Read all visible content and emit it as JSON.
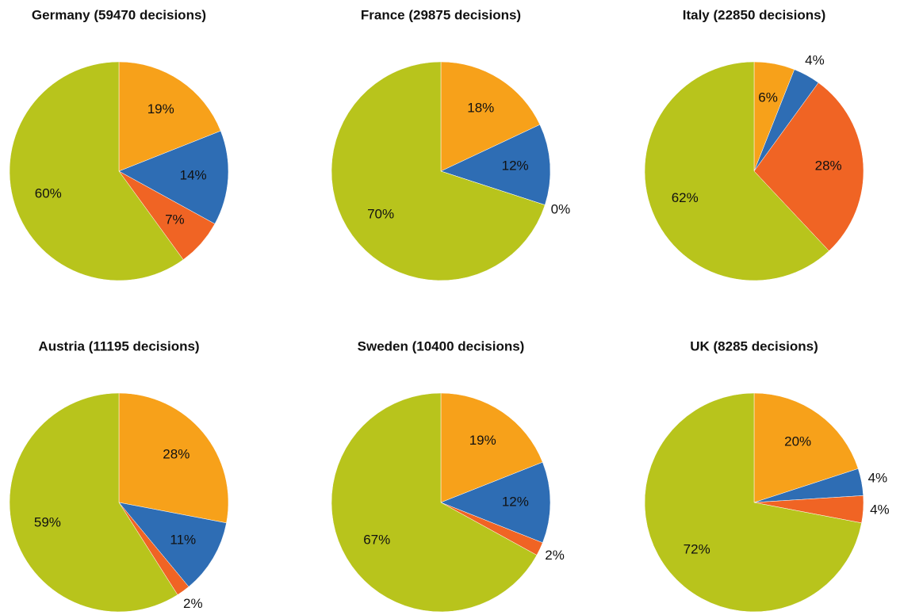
{
  "chart_data": [
    {
      "type": "pie",
      "title": "Germany (59470 decisions)",
      "values": [
        19,
        14,
        7,
        60
      ],
      "value_labels": [
        "19%",
        "14%",
        "7%",
        "60%"
      ],
      "colors": [
        "#f7a11a",
        "#2e6db4",
        "#f06424",
        "#b8c41c"
      ]
    },
    {
      "type": "pie",
      "title": "France (29875 decisions)",
      "values": [
        18,
        12,
        0,
        70
      ],
      "value_labels": [
        "18%",
        "12%",
        "0%",
        "70%"
      ],
      "colors": [
        "#f7a11a",
        "#2e6db4",
        "#f06424",
        "#b8c41c"
      ]
    },
    {
      "type": "pie",
      "title": "Italy (22850 decisions)",
      "values": [
        6,
        4,
        28,
        62
      ],
      "value_labels": [
        "6%",
        "4%",
        "28%",
        "62%"
      ],
      "colors": [
        "#f7a11a",
        "#2e6db4",
        "#f06424",
        "#b8c41c"
      ]
    },
    {
      "type": "pie",
      "title": "Austria (11195 decisions)",
      "values": [
        28,
        11,
        2,
        59
      ],
      "value_labels": [
        "28%",
        "11%",
        "2%",
        "59%"
      ],
      "colors": [
        "#f7a11a",
        "#2e6db4",
        "#f06424",
        "#b8c41c"
      ]
    },
    {
      "type": "pie",
      "title": "Sweden (10400 decisions)",
      "values": [
        19,
        12,
        2,
        67
      ],
      "value_labels": [
        "19%",
        "12%",
        "2%",
        "67%"
      ],
      "colors": [
        "#f7a11a",
        "#2e6db4",
        "#f06424",
        "#b8c41c"
      ]
    },
    {
      "type": "pie",
      "title": "UK (8285 decisions)",
      "values": [
        20,
        4,
        4,
        72
      ],
      "value_labels": [
        "20%",
        "4%",
        "4%",
        "72%"
      ],
      "colors": [
        "#f7a11a",
        "#2e6db4",
        "#f06424",
        "#b8c41c"
      ]
    }
  ]
}
